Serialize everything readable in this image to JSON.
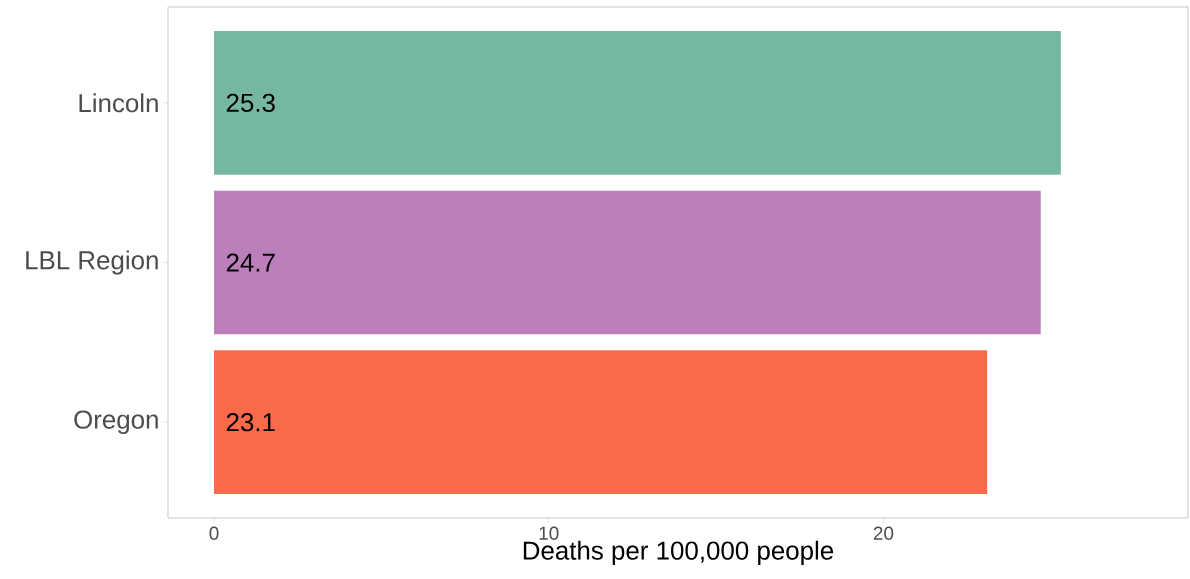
{
  "chart_data": {
    "type": "bar",
    "orientation": "horizontal",
    "xlabel": "Deaths per 100,000 people",
    "categories": [
      "Lincoln",
      "LBL Region",
      "Oregon"
    ],
    "values": [
      25.3,
      24.7,
      23.1
    ],
    "colors": [
      "#76b7a4",
      "#bd7fbb",
      "#fb6a4a"
    ],
    "xlim": [
      -1.375,
      29.1
    ],
    "xticks": [
      0,
      10,
      20
    ],
    "data_labels": true
  }
}
